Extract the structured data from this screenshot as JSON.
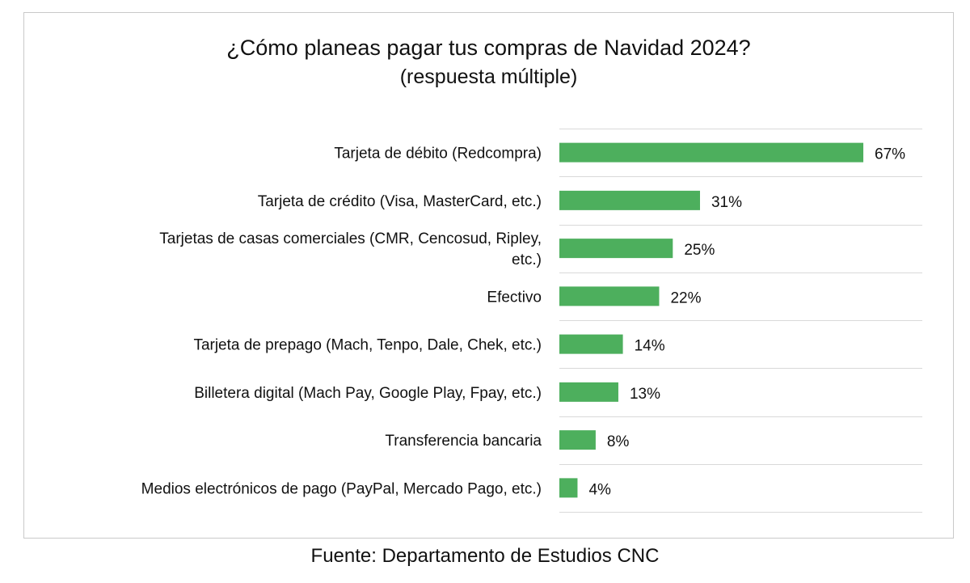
{
  "chart_data": {
    "type": "bar",
    "orientation": "horizontal",
    "title": "¿Cómo planeas pagar tus compras de Navidad 2024?",
    "subtitle": "(respuesta múltiple)",
    "categories": [
      "Tarjeta de débito (Redcompra)",
      "Tarjeta de crédito (Visa, MasterCard, etc.)",
      "Tarjetas de casas comerciales (CMR, Cencosud, Ripley, etc.)",
      "Efectivo",
      "Tarjeta de prepago (Mach, Tenpo, Dale, Chek, etc.)",
      "Billetera digital (Mach Pay, Google Play, Fpay, etc.)",
      "Transferencia bancaria",
      "Medios electrónicos de pago (PayPal, Mercado Pago, etc.)"
    ],
    "category_label_lines": [
      [
        "Tarjeta de débito (Redcompra)"
      ],
      [
        "Tarjeta de crédito (Visa, MasterCard, etc.)"
      ],
      [
        "Tarjetas de casas comerciales (CMR, Cencosud, Ripley,",
        "etc.)"
      ],
      [
        "Efectivo"
      ],
      [
        "Tarjeta de prepago (Mach, Tenpo, Dale, Chek, etc.)"
      ],
      [
        "Billetera digital (Mach Pay, Google Play, Fpay, etc.)"
      ],
      [
        "Transferencia bancaria"
      ],
      [
        "Medios electrónicos de pago (PayPal, Mercado Pago, etc.)"
      ]
    ],
    "values": [
      67,
      31,
      25,
      22,
      14,
      13,
      8,
      4
    ],
    "data_labels": [
      "67%",
      "31%",
      "25%",
      "22%",
      "14%",
      "13%",
      "8%",
      "4%"
    ],
    "unit": "%",
    "xlim": [
      0,
      80
    ],
    "grid": true,
    "bar_color": "#4daf5d",
    "legend": "none"
  },
  "source": "Fuente: Departamento de Estudios CNC"
}
